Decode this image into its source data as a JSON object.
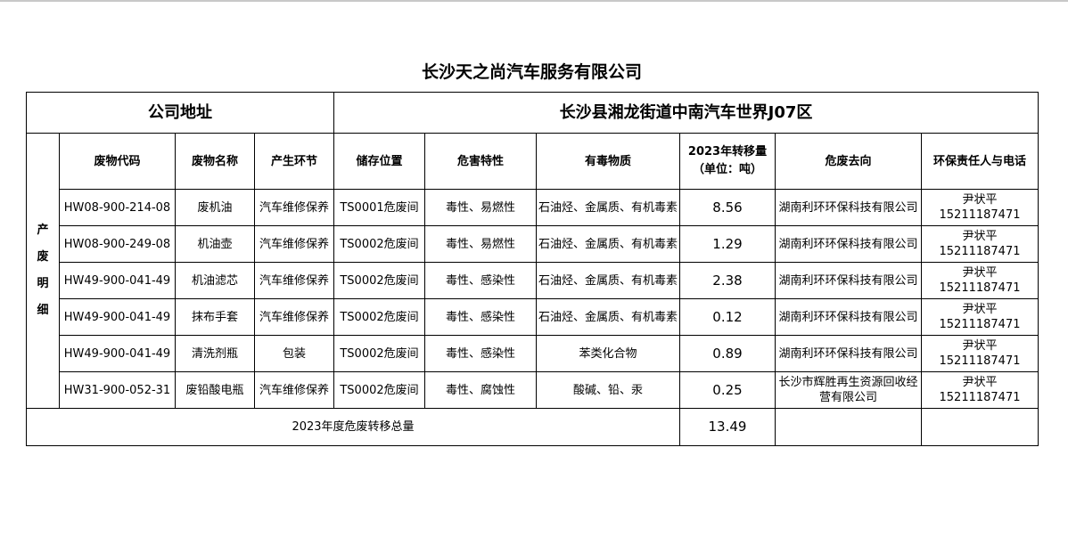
{
  "title": "长沙天之尚汽车服务有限公司",
  "address_label": "公司地址",
  "address_value": "长沙县湘龙街道中南汽车世界J07区",
  "side_label": "产废明细",
  "headers": [
    "废物代码",
    "废物名称",
    "产生环节",
    "储存位置",
    "危害特性",
    "有毒物质",
    "2023年转移量（单位：吨）",
    "危废去向",
    "环保责任人与电话"
  ],
  "rows": [
    {
      "code": "HW08-900-214-08",
      "name": "废机油",
      "stage": "汽车维修保养",
      "storage": "TS0001危废间",
      "hazard": "毒性、易燃性",
      "toxic": "石油烃、金属质、有机毒素",
      "amount": "8.56",
      "dest": "湖南利环环保科技有限公司",
      "person": "尹状平",
      "phone": "15211187471"
    },
    {
      "code": "HW08-900-249-08",
      "name": "机油壶",
      "stage": "汽车维修保养",
      "storage": "TS0002危废间",
      "hazard": "毒性、易燃性",
      "toxic": "石油烃、金属质、有机毒素",
      "amount": "1.29",
      "dest": "湖南利环环保科技有限公司",
      "person": "尹状平",
      "phone": "15211187471"
    },
    {
      "code": "HW49-900-041-49",
      "name": "机油滤芯",
      "stage": "汽车维修保养",
      "storage": "TS0002危废间",
      "hazard": "毒性、感染性",
      "toxic": "石油烃、金属质、有机毒素",
      "amount": "2.38",
      "dest": "湖南利环环保科技有限公司",
      "person": "尹状平",
      "phone": "15211187471"
    },
    {
      "code": "HW49-900-041-49",
      "name": "抹布手套",
      "stage": "汽车维修保养",
      "storage": "TS0002危废间",
      "hazard": "毒性、感染性",
      "toxic": "石油烃、金属质、有机毒素",
      "amount": "0.12",
      "dest": "湖南利环环保科技有限公司",
      "person": "尹状平",
      "phone": "15211187471"
    },
    {
      "code": "HW49-900-041-49",
      "name": "清洗剂瓶",
      "stage": "包装",
      "storage": "TS0002危废间",
      "hazard": "毒性、感染性",
      "toxic": "苯类化合物",
      "amount": "0.89",
      "dest": "湖南利环环保科技有限公司",
      "person": "尹状平",
      "phone": "15211187471"
    },
    {
      "code": "HW31-900-052-31",
      "name": "废铅酸电瓶",
      "stage": "汽车维修保养",
      "storage": "TS0002危废间",
      "hazard": "毒性、腐蚀性",
      "toxic": "酸碱、铅、汞",
      "amount": "0.25",
      "dest": "长沙市辉胜再生资源回收经营有限公司",
      "person": "尹状平",
      "phone": "15211187471"
    }
  ],
  "total_label": "2023年度危废转移总量",
  "total_value": "13.49"
}
